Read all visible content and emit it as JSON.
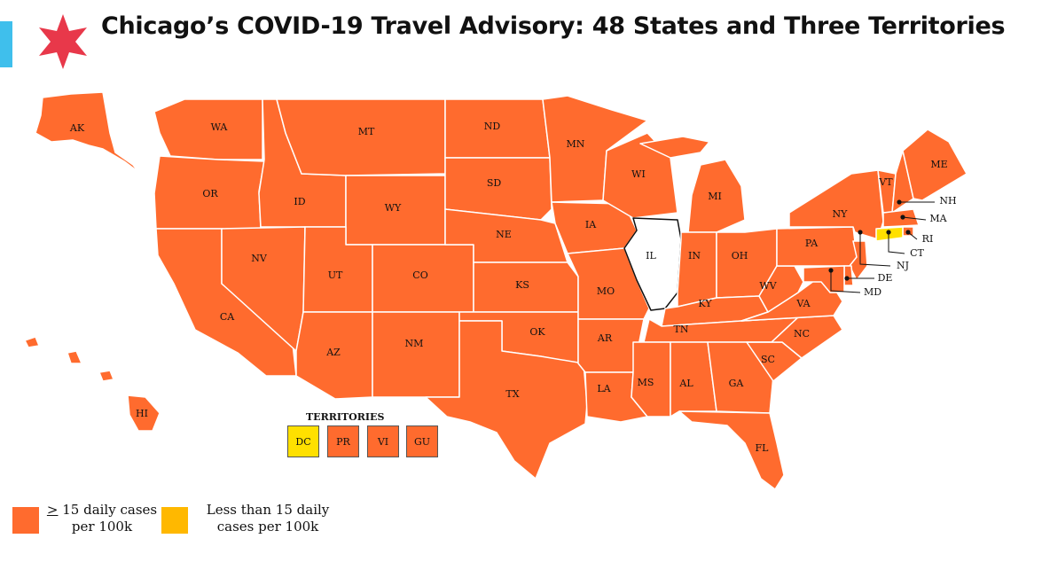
{
  "header": {
    "title": "Chicago’s COVID-19 Travel Advisory: 48 States and Three Territories",
    "accent_color": "#3fbfec",
    "star_color": "#e8384a",
    "logo_icon": "chicago-star-icon"
  },
  "colors": {
    "high": "#ff6b2e",
    "low": "#ffe000",
    "legend_low": "#ffb800",
    "home": "#ffffff",
    "border": "#ffffff"
  },
  "home_state": "IL",
  "state_labels": [
    "AK",
    "WA",
    "MT",
    "ND",
    "MN",
    "OR",
    "ID",
    "WY",
    "SD",
    "WI",
    "MI",
    "ME",
    "VT",
    "NH",
    "MA",
    "RI",
    "CT",
    "NY",
    "IA",
    "NE",
    "IL",
    "IN",
    "OH",
    "PA",
    "NJ",
    "DE",
    "MD",
    "NV",
    "UT",
    "CO",
    "KS",
    "MO",
    "KY",
    "WV",
    "VA",
    "CA",
    "OK",
    "AR",
    "TN",
    "NC",
    "AZ",
    "NM",
    "SC",
    "TX",
    "LA",
    "MS",
    "AL",
    "GA",
    "FL",
    "HI"
  ],
  "yellow_states": [
    "CT"
  ],
  "territories": {
    "title": "TERRITORIES",
    "items": [
      {
        "code": "DC",
        "status": "low"
      },
      {
        "code": "PR",
        "status": "high"
      },
      {
        "code": "VI",
        "status": "high"
      },
      {
        "code": "GU",
        "status": "high"
      }
    ]
  },
  "legend": {
    "high_symbol": ">",
    "high_line1": " 15 daily cases",
    "high_line2": "per 100k",
    "low_line1": "Less than 15 daily",
    "low_line2": "cases per 100k"
  }
}
